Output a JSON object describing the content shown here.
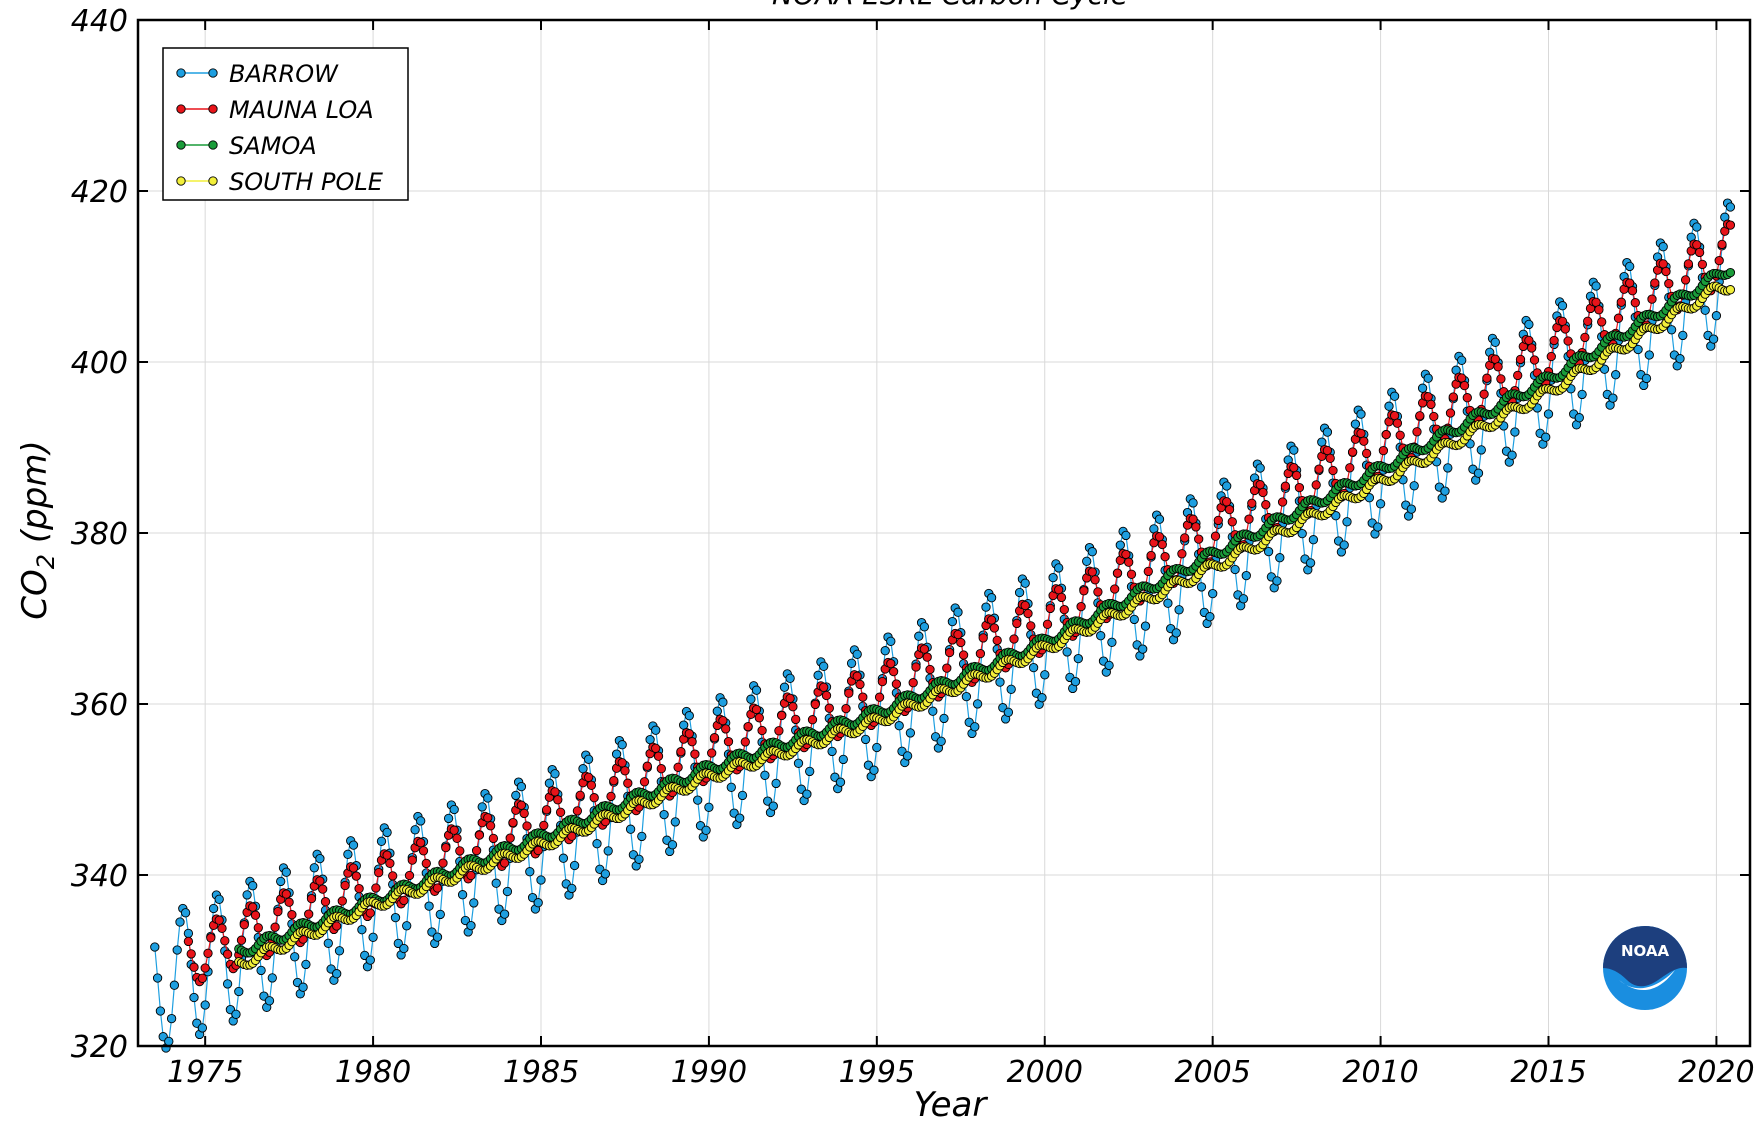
{
  "chart_data": {
    "type": "line",
    "title": "NOAA ESRL Carbon Cycle",
    "xlabel": "Year",
    "ylabel": "CO",
    "ylabel_sub": "2",
    "ylabel_unit": "(ppm)",
    "xlim": [
      1973.0,
      2021.0
    ],
    "ylim": [
      320,
      440
    ],
    "xticks": [
      1975,
      1980,
      1985,
      1990,
      1995,
      2000,
      2005,
      2010,
      2015,
      2020
    ],
    "yticks": [
      320,
      340,
      360,
      380,
      400,
      420,
      440
    ],
    "grid": true,
    "legend_position": "top-left",
    "series": [
      {
        "name": "BARROW",
        "color": "#1e9fe0",
        "anchors": [
          [
            1973.5,
            327.0
          ],
          [
            1980.0,
            337.3
          ],
          [
            1985.0,
            344.0
          ],
          [
            1990.0,
            352.5
          ],
          [
            1995.0,
            359.5
          ],
          [
            2000.0,
            368.0
          ],
          [
            2005.0,
            377.5
          ],
          [
            2010.0,
            388.0
          ],
          [
            2015.0,
            398.5
          ],
          [
            2020.0,
            410.0
          ],
          [
            2020.4,
            411.0
          ]
        ],
        "seasonal_amplitude": 7.8,
        "start": 1973.5,
        "end": 2020.4
      },
      {
        "name": "MAUNA LOA",
        "color": "#e8141a",
        "anchors": [
          [
            1974.5,
            330.3
          ],
          [
            1980.0,
            338.7
          ],
          [
            1985.0,
            346.0
          ],
          [
            1990.0,
            354.5
          ],
          [
            1995.0,
            361.0
          ],
          [
            2000.0,
            369.5
          ],
          [
            2005.0,
            379.8
          ],
          [
            2010.0,
            389.8
          ],
          [
            2015.0,
            400.8
          ],
          [
            2020.0,
            412.0
          ],
          [
            2020.4,
            413.0
          ]
        ],
        "seasonal_amplitude": 3.3,
        "start": 1974.5,
        "end": 2020.4
      },
      {
        "name": "SAMOA",
        "color": "#1a9c3a",
        "anchors": [
          [
            1976.0,
            331.0
          ],
          [
            1980.0,
            337.0
          ],
          [
            1985.0,
            344.5
          ],
          [
            1990.0,
            352.5
          ],
          [
            1995.0,
            359.0
          ],
          [
            2000.0,
            367.3
          ],
          [
            2005.0,
            377.5
          ],
          [
            2010.0,
            387.5
          ],
          [
            2015.0,
            398.0
          ],
          [
            2020.0,
            410.0
          ],
          [
            2020.4,
            411.0
          ]
        ],
        "seasonal_amplitude": 0.6,
        "start": 1976.0,
        "end": 2020.4
      },
      {
        "name": "SOUTH POLE",
        "color": "#f2ef3a",
        "anchors": [
          [
            1976.0,
            329.5
          ],
          [
            1980.0,
            336.5
          ],
          [
            1985.0,
            343.5
          ],
          [
            1990.0,
            351.5
          ],
          [
            1995.0,
            358.0
          ],
          [
            2000.0,
            366.5
          ],
          [
            2005.0,
            376.0
          ],
          [
            2010.0,
            386.0
          ],
          [
            2015.0,
            396.5
          ],
          [
            2020.0,
            408.5
          ],
          [
            2020.4,
            409.0
          ]
        ],
        "seasonal_amplitude": 0.6,
        "start": 1976.0,
        "end": 2020.4
      }
    ]
  },
  "logo": {
    "text": "NOAA",
    "color_top": "#1d3f7e",
    "color_bottom": "#1a8ee0"
  }
}
